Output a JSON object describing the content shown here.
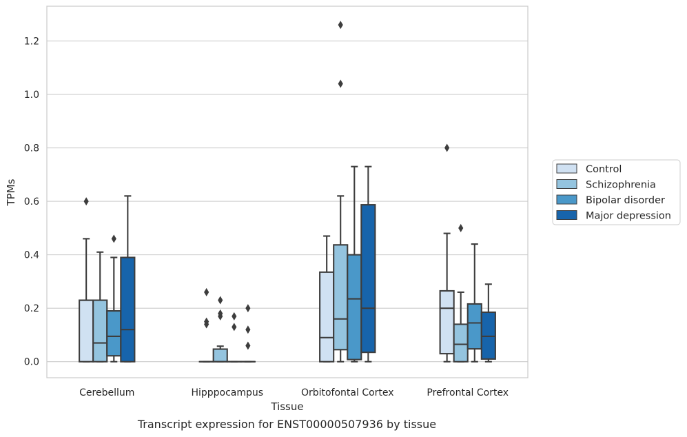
{
  "chart_data": {
    "type": "box",
    "title": "",
    "caption": "Transcript expression for ENST00000507936 by tissue",
    "xlabel": "Tissue",
    "ylabel": "TPMs",
    "ylim": [
      -0.06,
      1.33
    ],
    "yticks": [
      0.0,
      0.2,
      0.4,
      0.6,
      0.8,
      1.0,
      1.2
    ],
    "ytick_labels": [
      "0.0",
      "0.2",
      "0.4",
      "0.6",
      "0.8",
      "1.0",
      "1.2"
    ],
    "grid": "horizontal",
    "legend_position": "right",
    "categories": [
      "Cerebellum",
      "Hipppocampus",
      "Orbitofontal Cortex",
      "Prefrontal Cortex"
    ],
    "series": [
      {
        "name": "Control",
        "color": "#d0e1f2",
        "boxes": [
          {
            "whislo": 0.0,
            "q1": 0.0,
            "med": 0.23,
            "q3": 0.23,
            "whishi": 0.46,
            "fliers": [
              0.6
            ]
          },
          {
            "whislo": 0.0,
            "q1": 0.0,
            "med": 0.0,
            "q3": 0.0,
            "whishi": 0.0,
            "fliers": [
              0.26,
              0.15,
              0.14
            ]
          },
          {
            "whislo": 0.0,
            "q1": 0.0,
            "med": 0.09,
            "q3": 0.335,
            "whishi": 0.47,
            "fliers": []
          },
          {
            "whislo": 0.0,
            "q1": 0.03,
            "med": 0.2,
            "q3": 0.265,
            "whishi": 0.48,
            "fliers": [
              0.8
            ]
          }
        ]
      },
      {
        "name": "Schizophrenia",
        "color": "#94c4df",
        "boxes": [
          {
            "whislo": 0.0,
            "q1": 0.0,
            "med": 0.07,
            "q3": 0.23,
            "whishi": 0.41,
            "fliers": []
          },
          {
            "whislo": 0.0,
            "q1": 0.0,
            "med": 0.0,
            "q3": 0.047,
            "whishi": 0.058,
            "fliers": [
              0.23,
              0.18,
              0.17
            ]
          },
          {
            "whislo": 0.0,
            "q1": 0.045,
            "med": 0.16,
            "q3": 0.437,
            "whishi": 0.62,
            "fliers": [
              1.26,
              1.04
            ]
          },
          {
            "whislo": 0.0,
            "q1": 0.0,
            "med": 0.065,
            "q3": 0.14,
            "whishi": 0.26,
            "fliers": [
              0.5
            ]
          }
        ]
      },
      {
        "name": "Bipolar disorder",
        "color": "#4a98c9",
        "boxes": [
          {
            "whislo": 0.0,
            "q1": 0.022,
            "med": 0.095,
            "q3": 0.19,
            "whishi": 0.39,
            "fliers": [
              0.46
            ]
          },
          {
            "whislo": 0.0,
            "q1": 0.0,
            "med": 0.0,
            "q3": 0.0,
            "whishi": 0.0,
            "fliers": [
              0.17,
              0.13
            ]
          },
          {
            "whislo": 0.0,
            "q1": 0.008,
            "med": 0.235,
            "q3": 0.4,
            "whishi": 0.73,
            "fliers": []
          },
          {
            "whislo": 0.0,
            "q1": 0.048,
            "med": 0.145,
            "q3": 0.216,
            "whishi": 0.44,
            "fliers": []
          }
        ]
      },
      {
        "name": "Major depression",
        "color": "#1764ab",
        "boxes": [
          {
            "whislo": 0.0,
            "q1": 0.0,
            "med": 0.12,
            "q3": 0.39,
            "whishi": 0.62,
            "fliers": []
          },
          {
            "whislo": 0.0,
            "q1": 0.0,
            "med": 0.0,
            "q3": 0.0,
            "whishi": 0.0,
            "fliers": [
              0.2,
              0.12,
              0.06
            ]
          },
          {
            "whislo": 0.0,
            "q1": 0.035,
            "med": 0.2,
            "q3": 0.587,
            "whishi": 0.73,
            "fliers": []
          },
          {
            "whislo": 0.0,
            "q1": 0.01,
            "med": 0.095,
            "q3": 0.185,
            "whishi": 0.29,
            "fliers": []
          }
        ]
      }
    ]
  }
}
